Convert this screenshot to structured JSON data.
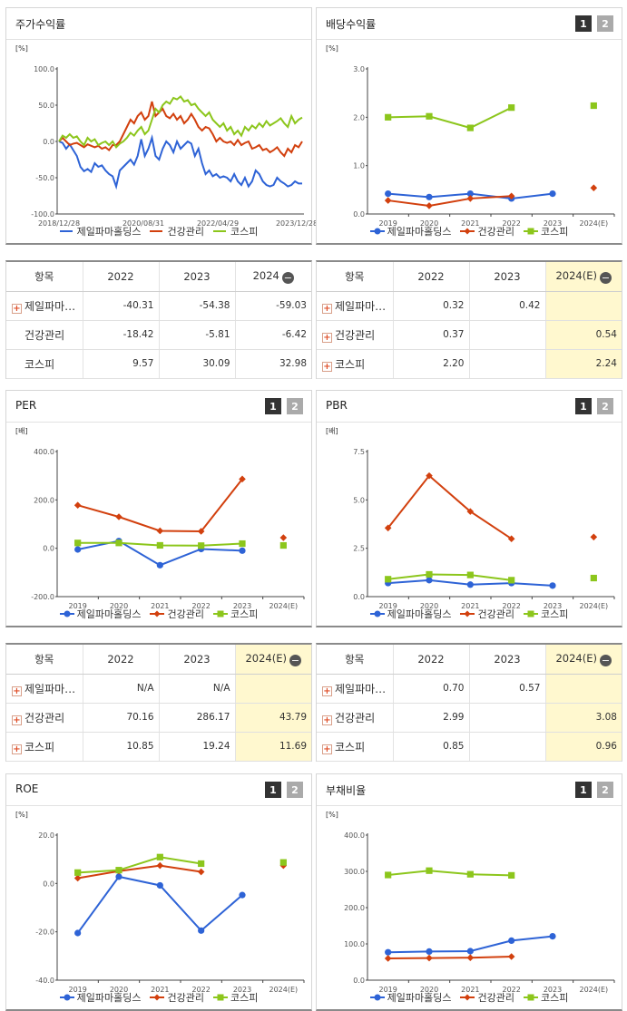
{
  "colors": {
    "jeil": "#2e63d6",
    "health": "#d2400e",
    "kospi": "#8cc61c"
  },
  "series_names": [
    "제일파마홀딩스",
    "건강관리",
    "코스피"
  ],
  "panels": [
    {
      "title": "주가수익률",
      "unit": "[%]",
      "pager": null,
      "chart_data": {
        "type": "line",
        "title": "주가수익률",
        "ylabel": "[%]",
        "ylim": [
          -100,
          100
        ],
        "yticks": [
          "100.0",
          "50.0",
          "0.0",
          "-50.0",
          "-100.0"
        ],
        "ytick_values": [
          100,
          50,
          0,
          -50,
          -100
        ],
        "xticks": [
          "2018/12/28",
          "2020/08/31",
          "2022/04/29",
          "2023/12/28"
        ],
        "series": [
          {
            "name": "제일파마홀딩스",
            "color": "#2e63d6",
            "values": [
              0,
              -2,
              -10,
              -4,
              -12,
              -20,
              -35,
              -41,
              -38,
              -42,
              -30,
              -35,
              -33,
              -40,
              -45,
              -48,
              -62,
              -40,
              -35,
              -30,
              -25,
              -32,
              -20,
              3,
              -20,
              -10,
              5,
              -20,
              -25,
              -10,
              0,
              -5,
              -15,
              0,
              -10,
              -5,
              0,
              -3,
              -20,
              -10,
              -30,
              -45,
              -40,
              -48,
              -45,
              -50,
              -48,
              -50,
              -55,
              -45,
              -55,
              -60,
              -50,
              -62,
              -55,
              -40,
              -45,
              -55,
              -60,
              -62,
              -60,
              -50,
              -55,
              -58,
              -62,
              -60,
              -55,
              -58,
              -58
            ]
          },
          {
            "name": "건강관리",
            "color": "#d2400e",
            "values": [
              0,
              5,
              0,
              -5,
              -3,
              -2,
              -5,
              -8,
              -4,
              -6,
              -8,
              -6,
              -10,
              -8,
              -12,
              -5,
              -5,
              0,
              10,
              20,
              30,
              25,
              35,
              40,
              30,
              35,
              55,
              35,
              40,
              45,
              35,
              32,
              38,
              30,
              35,
              25,
              30,
              38,
              30,
              20,
              15,
              20,
              18,
              10,
              0,
              5,
              0,
              -2,
              0,
              -5,
              2,
              -5,
              -2,
              0,
              -10,
              -8,
              -5,
              -12,
              -10,
              -15,
              -12,
              -8,
              -15,
              -20,
              -10,
              -15,
              -5,
              -8,
              0
            ]
          },
          {
            "name": "코스피",
            "color": "#8cc61c",
            "values": [
              0,
              8,
              5,
              10,
              5,
              7,
              0,
              -5,
              5,
              0,
              3,
              -5,
              -2,
              0,
              -5,
              0,
              -8,
              -3,
              0,
              5,
              12,
              8,
              15,
              20,
              10,
              15,
              30,
              45,
              40,
              50,
              55,
              52,
              60,
              58,
              62,
              55,
              57,
              50,
              52,
              45,
              40,
              35,
              40,
              30,
              25,
              20,
              25,
              15,
              20,
              10,
              15,
              8,
              20,
              15,
              22,
              18,
              25,
              20,
              28,
              22,
              25,
              28,
              32,
              25,
              20,
              35,
              25,
              30,
              33
            ]
          }
        ]
      },
      "table": {
        "header": [
          "항목",
          "2022",
          "2023",
          "2024"
        ],
        "est_col": false,
        "rows": [
          {
            "name": "제일파마…",
            "plus": true,
            "values": [
              "-40.31",
              "-54.38",
              "-59.03"
            ]
          },
          {
            "name": "건강관리",
            "plus": false,
            "values": [
              "-18.42",
              "-5.81",
              "-6.42"
            ]
          },
          {
            "name": "코스피",
            "plus": false,
            "values": [
              "9.57",
              "30.09",
              "32.98"
            ]
          }
        ]
      }
    },
    {
      "title": "배당수익률",
      "unit": "[%]",
      "pager": [
        "1",
        "2"
      ],
      "chart_data": {
        "type": "line",
        "title": "배당수익률",
        "ylabel": "[%]",
        "ylim": [
          0,
          3
        ],
        "yticks": [
          "3.0",
          "2.0",
          "1.0",
          "0.0"
        ],
        "ytick_values": [
          3,
          2,
          1,
          0
        ],
        "categories": [
          "2019",
          "2020",
          "2021",
          "2022",
          "2023",
          "2024(E)"
        ],
        "series": [
          {
            "name": "제일파마홀딩스",
            "color": "#2e63d6",
            "values": [
              0.42,
              0.35,
              0.42,
              0.32,
              0.42,
              null
            ]
          },
          {
            "name": "건강관리",
            "color": "#d2400e",
            "values": [
              0.28,
              0.17,
              0.32,
              0.37,
              null,
              0.54
            ]
          },
          {
            "name": "코스피",
            "color": "#8cc61c",
            "values": [
              2.0,
              2.02,
              1.78,
              2.2,
              null,
              2.24
            ]
          }
        ]
      },
      "table": {
        "header": [
          "항목",
          "2022",
          "2023",
          "2024(E)"
        ],
        "est_col": true,
        "rows": [
          {
            "name": "제일파마…",
            "plus": true,
            "values": [
              "0.32",
              "0.42",
              ""
            ]
          },
          {
            "name": "건강관리",
            "plus": true,
            "values": [
              "0.37",
              "",
              "0.54"
            ]
          },
          {
            "name": "코스피",
            "plus": true,
            "values": [
              "2.20",
              "",
              "2.24"
            ]
          }
        ]
      }
    },
    {
      "title": "PER",
      "unit": "[배]",
      "pager": [
        "1",
        "2"
      ],
      "chart_data": {
        "type": "line",
        "title": "PER",
        "ylabel": "[배]",
        "ylim": [
          -200,
          400
        ],
        "yticks": [
          "400.0",
          "200.0",
          "0.0",
          "-200.0"
        ],
        "ytick_values": [
          400,
          200,
          0,
          -200
        ],
        "categories": [
          "2019",
          "2020",
          "2021",
          "2022",
          "2023",
          "2024(E)"
        ],
        "series": [
          {
            "name": "제일파마홀딩스",
            "color": "#2e63d6",
            "values": [
              -5,
              30,
              -70,
              -3,
              -10,
              null
            ]
          },
          {
            "name": "건강관리",
            "color": "#d2400e",
            "values": [
              178,
              130,
              72,
              70.16,
              286.17,
              43.79
            ]
          },
          {
            "name": "코스피",
            "color": "#8cc61c",
            "values": [
              22,
              22,
              12,
              10.85,
              19.24,
              11.69
            ]
          }
        ]
      },
      "table": {
        "header": [
          "항목",
          "2022",
          "2023",
          "2024(E)"
        ],
        "est_col": true,
        "rows": [
          {
            "name": "제일파마…",
            "plus": true,
            "values": [
              "N/A",
              "N/A",
              ""
            ]
          },
          {
            "name": "건강관리",
            "plus": true,
            "values": [
              "70.16",
              "286.17",
              "43.79"
            ]
          },
          {
            "name": "코스피",
            "plus": true,
            "values": [
              "10.85",
              "19.24",
              "11.69"
            ]
          }
        ]
      }
    },
    {
      "title": "PBR",
      "unit": "[배]",
      "pager": [
        "1",
        "2"
      ],
      "chart_data": {
        "type": "line",
        "title": "PBR",
        "ylabel": "[배]",
        "ylim": [
          0,
          7.5
        ],
        "yticks": [
          "7.5",
          "5.0",
          "2.5",
          "0.0"
        ],
        "ytick_values": [
          7.5,
          5,
          2.5,
          0
        ],
        "categories": [
          "2019",
          "2020",
          "2021",
          "2022",
          "2023",
          "2024(E)"
        ],
        "series": [
          {
            "name": "제일파마홀딩스",
            "color": "#2e63d6",
            "values": [
              0.7,
              0.85,
              0.62,
              0.7,
              0.57,
              null
            ]
          },
          {
            "name": "건강관리",
            "color": "#d2400e",
            "values": [
              3.55,
              6.25,
              4.4,
              2.99,
              null,
              3.08
            ]
          },
          {
            "name": "코스피",
            "color": "#8cc61c",
            "values": [
              0.9,
              1.15,
              1.12,
              0.85,
              null,
              0.96
            ]
          }
        ]
      },
      "table": {
        "header": [
          "항목",
          "2022",
          "2023",
          "2024(E)"
        ],
        "est_col": true,
        "rows": [
          {
            "name": "제일파마…",
            "plus": true,
            "values": [
              "0.70",
              "0.57",
              ""
            ]
          },
          {
            "name": "건강관리",
            "plus": true,
            "values": [
              "2.99",
              "",
              "3.08"
            ]
          },
          {
            "name": "코스피",
            "plus": true,
            "values": [
              "0.85",
              "",
              "0.96"
            ]
          }
        ]
      }
    },
    {
      "title": "ROE",
      "unit": "[%]",
      "pager": [
        "1",
        "2"
      ],
      "chart_data": {
        "type": "line",
        "title": "ROE",
        "ylabel": "[%]",
        "ylim": [
          -40,
          20
        ],
        "yticks": [
          "20.0",
          "0.0",
          "-20.0",
          "-40.0"
        ],
        "ytick_values": [
          20,
          0,
          -20,
          -40
        ],
        "categories": [
          "2019",
          "2020",
          "2021",
          "2022",
          "2023",
          "2024(E)"
        ],
        "series": [
          {
            "name": "제일파마홀딩스",
            "color": "#2e63d6",
            "values": [
              -20.5,
              2.8,
              -0.8,
              -19.5,
              -4.8,
              null
            ]
          },
          {
            "name": "건강관리",
            "color": "#d2400e",
            "values": [
              2.2,
              5.1,
              7.4,
              4.8,
              null,
              7.4
            ]
          },
          {
            "name": "코스피",
            "color": "#8cc61c",
            "values": [
              4.5,
              5.5,
              10.9,
              8.2,
              null,
              8.7
            ]
          }
        ]
      },
      "table": null
    },
    {
      "title": "부채비율",
      "unit": "[%]",
      "pager": [
        "1",
        "2"
      ],
      "chart_data": {
        "type": "line",
        "title": "부채비율",
        "ylabel": "[%]",
        "ylim": [
          0,
          400
        ],
        "yticks": [
          "400.0",
          "300.0",
          "200.0",
          "100.0",
          "0.0"
        ],
        "ytick_values": [
          400,
          300,
          200,
          100,
          0
        ],
        "categories": [
          "2019",
          "2020",
          "2021",
          "2022",
          "2023",
          "2024(E)"
        ],
        "series": [
          {
            "name": "제일파마홀딩스",
            "color": "#2e63d6",
            "values": [
              77,
              79,
              80,
              109,
              121,
              null
            ]
          },
          {
            "name": "건강관리",
            "color": "#d2400e",
            "values": [
              60,
              61,
              62,
              65,
              null,
              null
            ]
          },
          {
            "name": "코스피",
            "color": "#8cc61c",
            "values": [
              290,
              302,
              292,
              289,
              null,
              null
            ]
          }
        ]
      },
      "table": null
    }
  ]
}
